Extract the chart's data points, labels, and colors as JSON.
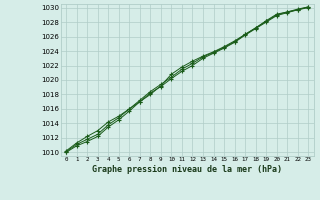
{
  "title": "Graphe pression niveau de la mer (hPa)",
  "xlabel_ticks": [
    0,
    1,
    2,
    3,
    4,
    5,
    6,
    7,
    8,
    9,
    10,
    11,
    12,
    13,
    14,
    15,
    16,
    17,
    18,
    19,
    20,
    21,
    22,
    23
  ],
  "ylim": [
    1009.5,
    1030.5
  ],
  "xlim": [
    -0.5,
    23.5
  ],
  "yticks": [
    1010,
    1012,
    1014,
    1016,
    1018,
    1020,
    1022,
    1024,
    1026,
    1028,
    1030
  ],
  "bg_color": "#d6ede8",
  "grid_color": "#b0cdc8",
  "line_color": "#1a5c1a",
  "line1_y": [
    1010.1,
    1011.1,
    1011.8,
    1012.5,
    1013.8,
    1014.8,
    1016.0,
    1017.2,
    1018.4,
    1019.4,
    1020.4,
    1021.5,
    1022.3,
    1023.2,
    1023.8,
    1024.5,
    1025.3,
    1026.3,
    1027.2,
    1028.1,
    1029.0,
    1029.4,
    1029.7,
    1030.1
  ],
  "line2_y": [
    1010.2,
    1011.3,
    1012.2,
    1013.0,
    1014.2,
    1015.0,
    1016.0,
    1017.0,
    1018.0,
    1019.2,
    1020.8,
    1021.8,
    1022.6,
    1023.3,
    1023.9,
    1024.6,
    1025.4,
    1026.3,
    1027.2,
    1028.2,
    1029.1,
    1029.4,
    1029.8,
    1030.1
  ],
  "line3_y": [
    1010.0,
    1010.9,
    1011.5,
    1012.2,
    1013.5,
    1014.5,
    1015.7,
    1017.0,
    1018.2,
    1019.1,
    1020.2,
    1021.2,
    1022.0,
    1023.0,
    1023.7,
    1024.4,
    1025.2,
    1026.2,
    1027.1,
    1028.0,
    1028.9,
    1029.3,
    1029.7,
    1030.0
  ]
}
